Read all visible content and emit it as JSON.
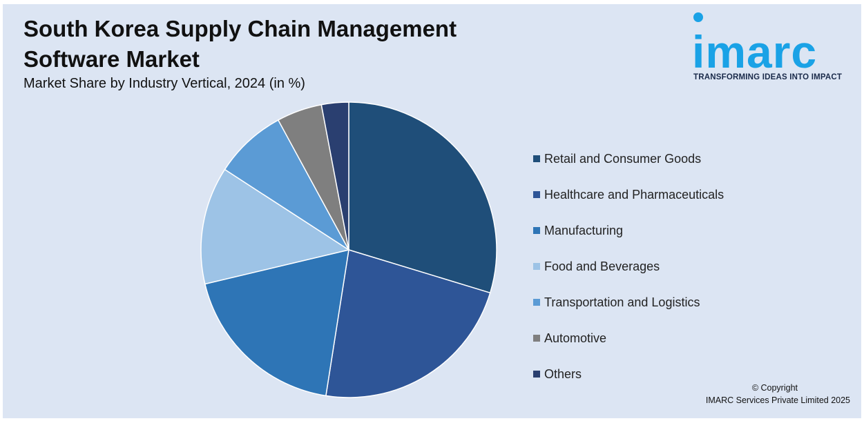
{
  "title": "South Korea Supply Chain Management Software Market",
  "subtitle": "Market Share by Industry Vertical, 2024 (in %)",
  "logo": {
    "word": "imarc",
    "tagline": "TRANSFORMING IDEAS INTO IMPACT",
    "color": "#1aa2e6"
  },
  "chart_data": {
    "type": "pie",
    "categories": [
      "Retail and Consumer Goods",
      "Healthcare and Pharmaceuticals",
      "Manufacturing",
      "Food and Beverages",
      "Transportation and Logistics",
      "Automotive",
      "Others"
    ],
    "values": [
      30,
      23,
      19,
      13,
      8,
      5,
      3
    ],
    "colors": [
      "#1f4e79",
      "#2e5597",
      "#2e75b6",
      "#9dc3e6",
      "#5b9bd5",
      "#7f7f7f",
      "#2a3f70"
    ],
    "legend_position": "right"
  },
  "copyright": {
    "line1": "© Copyright",
    "line2": "IMARC Services Private Limited 2025"
  },
  "background_color": "#dce5f3"
}
